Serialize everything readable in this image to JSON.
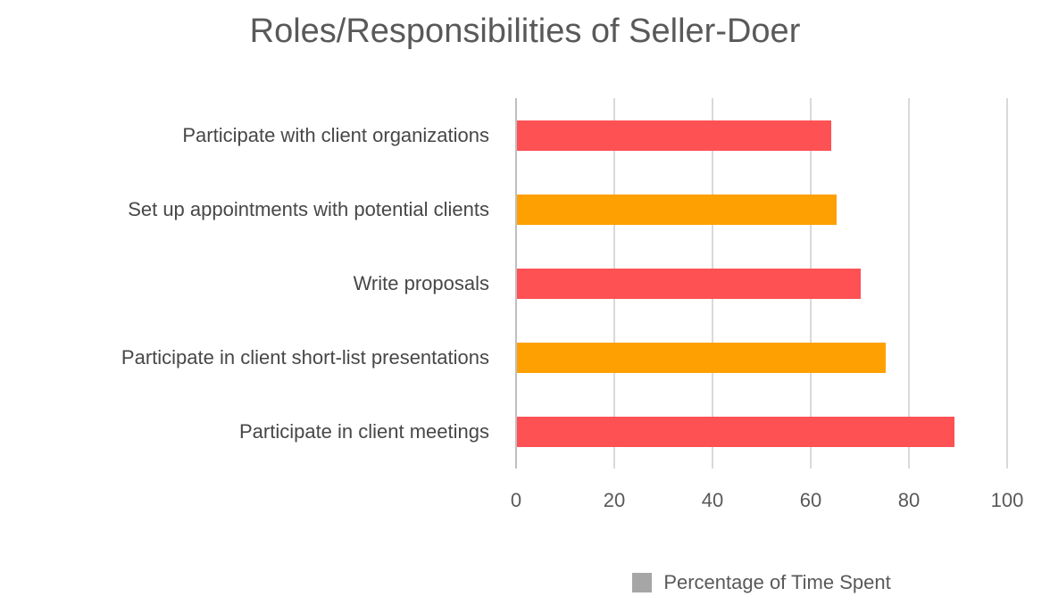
{
  "chart_data": {
    "type": "bar",
    "orientation": "horizontal",
    "title": "Roles/Responsibilities of Seller-Doer",
    "categories": [
      "Participate with client organizations",
      "Set up appointments with potential clients",
      "Write proposals",
      "Participate in client short-list presentations",
      "Participate in client meetings"
    ],
    "values": [
      64,
      65,
      70,
      75,
      89
    ],
    "bar_colors": [
      "#FD5154",
      "#FFA002",
      "#FD5154",
      "#FFA002",
      "#FD5154"
    ],
    "xlabel": "",
    "ylabel": "",
    "xlim": [
      0,
      100
    ],
    "x_ticks": [
      0,
      20,
      40,
      60,
      80,
      100
    ],
    "x_tick_labels": [
      "0",
      "20",
      "40",
      "60",
      "80",
      "100"
    ],
    "grid": true,
    "legend": {
      "position": "bottom",
      "items": [
        {
          "label": "Percentage of Time Spent",
          "marker_color": "#A6A6A6"
        }
      ]
    },
    "colors": {
      "background": "#FFFFFF",
      "red_series": "#FD5154",
      "orange_series": "#FFA002",
      "gridline": "#D9D9D9",
      "axis_line": "#BFBFBF",
      "title_text": "#595959",
      "category_label_text": "#474747",
      "tick_text": "#595959",
      "legend_marker": "#A6A6A6",
      "legend_text": "#595959"
    }
  }
}
